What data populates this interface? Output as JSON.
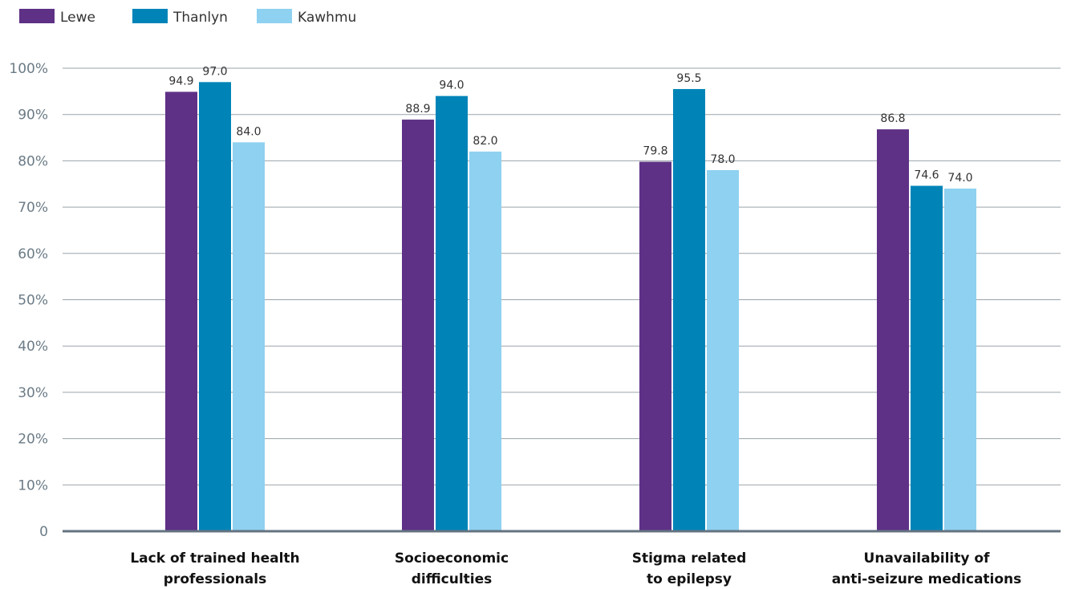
{
  "chart_data": {
    "type": "bar",
    "categories": [
      [
        "Lack of trained health",
        "professionals"
      ],
      [
        "Socioeconomic",
        "difficulties"
      ],
      [
        "Stigma related",
        "to epilepsy"
      ],
      [
        "Unavailability of",
        "anti-seizure medications"
      ]
    ],
    "series": [
      {
        "name": "Lewe",
        "color": "#5e3186",
        "values": [
          94.9,
          88.9,
          79.8,
          86.8
        ],
        "labels": [
          "94.9",
          "88.9",
          "79.8",
          "86.8"
        ]
      },
      {
        "name": "Thanlyn",
        "color": "#0084b8",
        "values": [
          97.0,
          94.0,
          95.5,
          74.6
        ],
        "labels": [
          "97.0",
          "94.0",
          "95.5",
          "74.6"
        ]
      },
      {
        "name": "Kawhmu",
        "color": "#8fd1f0",
        "values": [
          84.0,
          82.0,
          78.0,
          74.0
        ],
        "labels": [
          "84.0",
          "82.0",
          "78.0",
          "74.0"
        ]
      }
    ],
    "yticks": [
      "0",
      "10%",
      "20%",
      "30%",
      "40%",
      "50%",
      "60%",
      "70%",
      "80%",
      "90%",
      "100%"
    ],
    "ylim": [
      0,
      100
    ],
    "grid": true,
    "legend": "top-left",
    "axis_color": "#647380",
    "grid_color": "#9aa3aa"
  }
}
